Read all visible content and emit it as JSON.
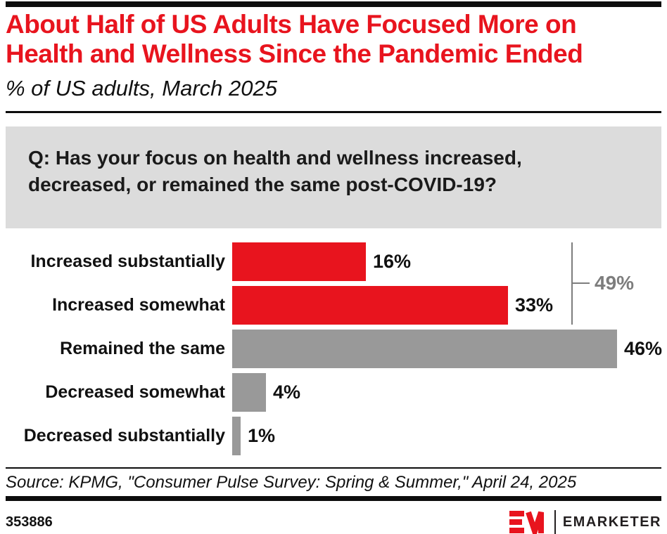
{
  "header": {
    "title_line1": "About Half of US Adults Have Focused More on",
    "title_line2": "Health and Wellness Since the Pandemic Ended",
    "subtitle": "% of US adults, March 2025",
    "title_color": "#e8141e"
  },
  "question_box": {
    "line1": "Q: Has your focus on health and wellness increased,",
    "line2": "decreased, or remained the same post-COVID-19?",
    "background_color": "#dcdcdc"
  },
  "chart_data": {
    "type": "bar",
    "orientation": "horizontal",
    "title": "About Half of US Adults Have Focused More on Health and Wellness Since the Pandemic Ended",
    "subtitle": "% of US adults, March 2025",
    "unit": "%",
    "categories": [
      "Increased substantially",
      "Increased somewhat",
      "Remained the same",
      "Decreased somewhat",
      "Decreased substantially"
    ],
    "values": [
      16,
      33,
      46,
      4,
      1
    ],
    "value_labels": [
      "16%",
      "33%",
      "46%",
      "4%",
      "1%"
    ],
    "bar_colors": [
      "#e8141e",
      "#e8141e",
      "#999999",
      "#999999",
      "#999999"
    ],
    "xlim": [
      0,
      46
    ],
    "grid": "off",
    "annotation": {
      "label": "49%",
      "covers_categories": [
        "Increased substantially",
        "Increased somewhat"
      ],
      "color": "#7d7d7d"
    }
  },
  "source": {
    "text": "Source: KPMG, \"Consumer Pulse Survey: Spring & Summer,\" April 24, 2025"
  },
  "footer": {
    "chart_id": "353886",
    "brand": "EMARKETER",
    "brand_color": "#e8141e"
  }
}
